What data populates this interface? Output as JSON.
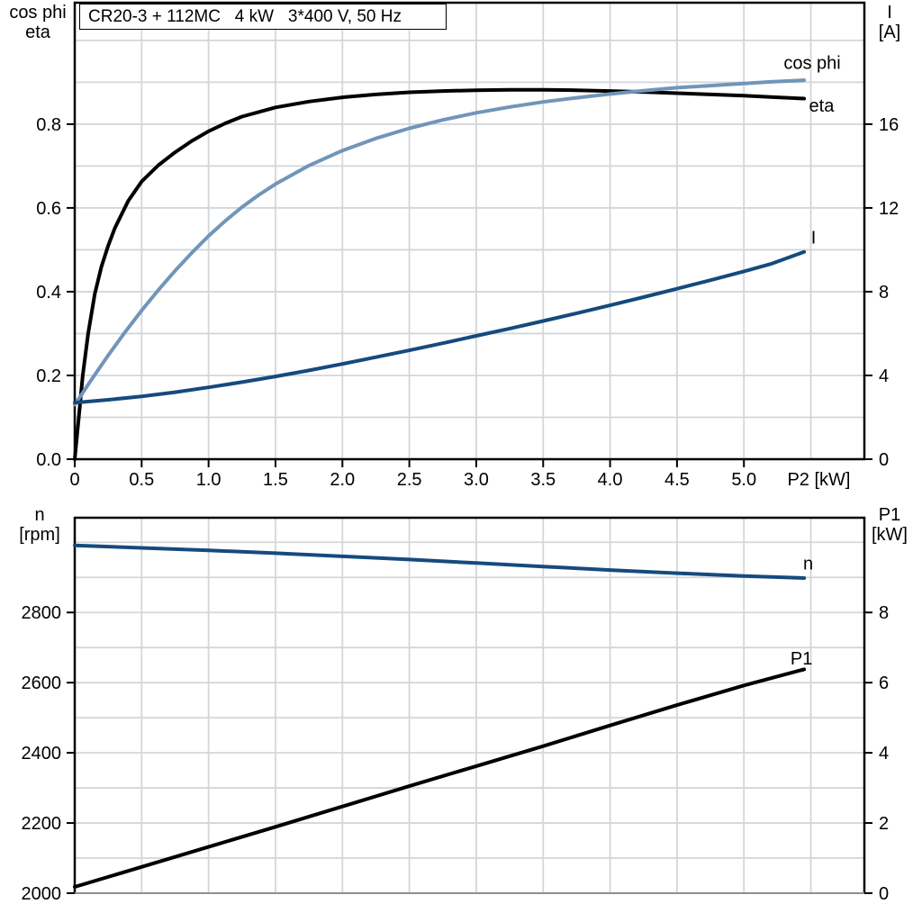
{
  "colors": {
    "frame": "#000000",
    "grid": "#d3d6da",
    "axis_gray": "#8f8f8f",
    "light_blue": "#7195b9",
    "dark_blue": "#154a7e",
    "black_curve": "#000000"
  },
  "chart_data": [
    {
      "type": "line",
      "name": "motor-efficiency",
      "title": "CR20-3 + 112MC   4 kW   3*400 V, 50 Hz",
      "x_axis": {
        "label": "P2 [kW]",
        "label_at": 5.56,
        "min": 0,
        "max": 5.9,
        "ticks": [
          0,
          0.5,
          1.0,
          1.5,
          2.0,
          2.5,
          3.0,
          3.5,
          4.0,
          4.5,
          5.0
        ],
        "tick_labels": [
          "0",
          "0.5",
          "1.0",
          "1.5",
          "2.0",
          "2.5",
          "3.0",
          "3.5",
          "4.0",
          "4.5",
          "5.0"
        ],
        "grid": {
          "from": 0.5,
          "to": 5.5,
          "step": 0.5
        }
      },
      "y_left": {
        "header": [
          "cos phi",
          "eta"
        ],
        "min": 0,
        "max": 1.09,
        "ticks": [
          0,
          0.2,
          0.4,
          0.6,
          0.8
        ],
        "tick_labels": [
          "0.0",
          "0.2",
          "0.4",
          "0.6",
          "0.8"
        ],
        "grid": {
          "from": 0.1,
          "to": 1.0,
          "step": 0.1
        }
      },
      "y_right": {
        "header": [
          "I",
          "[A]"
        ],
        "min": 0,
        "max": 21.8,
        "ticks": [
          0,
          4,
          8,
          12,
          16
        ],
        "tick_labels": [
          "0",
          "4",
          "8",
          "12",
          "16"
        ]
      },
      "series": [
        {
          "name": "eta",
          "axis": "left",
          "color": "#000000",
          "label": {
            "text": "eta",
            "x": 5.58,
            "y": 0.845
          },
          "points": [
            [
              0,
              0
            ],
            [
              0.03,
              0.1
            ],
            [
              0.06,
              0.2
            ],
            [
              0.1,
              0.3
            ],
            [
              0.15,
              0.395
            ],
            [
              0.2,
              0.46
            ],
            [
              0.25,
              0.51
            ],
            [
              0.3,
              0.552
            ],
            [
              0.4,
              0.617
            ],
            [
              0.5,
              0.663
            ],
            [
              0.625,
              0.702
            ],
            [
              0.75,
              0.733
            ],
            [
              0.875,
              0.76
            ],
            [
              1.0,
              0.783
            ],
            [
              1.125,
              0.802
            ],
            [
              1.25,
              0.818
            ],
            [
              1.5,
              0.84
            ],
            [
              1.75,
              0.854
            ],
            [
              2.0,
              0.864
            ],
            [
              2.25,
              0.871
            ],
            [
              2.5,
              0.876
            ],
            [
              2.75,
              0.879
            ],
            [
              3.0,
              0.881
            ],
            [
              3.25,
              0.882
            ],
            [
              3.5,
              0.882
            ],
            [
              3.75,
              0.881
            ],
            [
              4.0,
              0.879
            ],
            [
              4.25,
              0.877
            ],
            [
              4.5,
              0.874
            ],
            [
              4.75,
              0.871
            ],
            [
              5.0,
              0.868
            ],
            [
              5.2,
              0.865
            ],
            [
              5.45,
              0.861
            ]
          ]
        },
        {
          "name": "cos-phi",
          "axis": "left",
          "color": "#7195b9",
          "label": {
            "text": "cos phi",
            "x": 5.51,
            "y": 0.947
          },
          "points": [
            [
              0,
              0.13
            ],
            [
              0.125,
              0.19
            ],
            [
              0.25,
              0.248
            ],
            [
              0.375,
              0.303
            ],
            [
              0.5,
              0.355
            ],
            [
              0.625,
              0.404
            ],
            [
              0.75,
              0.45
            ],
            [
              0.875,
              0.493
            ],
            [
              1.0,
              0.533
            ],
            [
              1.125,
              0.569
            ],
            [
              1.25,
              0.602
            ],
            [
              1.375,
              0.631
            ],
            [
              1.5,
              0.657
            ],
            [
              1.75,
              0.701
            ],
            [
              2.0,
              0.737
            ],
            [
              2.25,
              0.766
            ],
            [
              2.5,
              0.79
            ],
            [
              2.75,
              0.81
            ],
            [
              3.0,
              0.827
            ],
            [
              3.25,
              0.841
            ],
            [
              3.5,
              0.853
            ],
            [
              3.75,
              0.863
            ],
            [
              4.0,
              0.872
            ],
            [
              4.25,
              0.88
            ],
            [
              4.5,
              0.887
            ],
            [
              4.75,
              0.892
            ],
            [
              5.0,
              0.897
            ],
            [
              5.2,
              0.901
            ],
            [
              5.45,
              0.905
            ]
          ]
        },
        {
          "name": "current",
          "axis": "right",
          "color": "#154a7e",
          "label": {
            "text": "I",
            "x": 5.52,
            "y": 10.6
          },
          "points": [
            [
              0,
              2.7
            ],
            [
              0.25,
              2.84
            ],
            [
              0.5,
              3.0
            ],
            [
              0.75,
              3.2
            ],
            [
              1.0,
              3.43
            ],
            [
              1.25,
              3.68
            ],
            [
              1.5,
              3.95
            ],
            [
              1.75,
              4.24
            ],
            [
              2.0,
              4.55
            ],
            [
              2.25,
              4.87
            ],
            [
              2.5,
              5.2
            ],
            [
              2.75,
              5.54
            ],
            [
              3.0,
              5.89
            ],
            [
              3.25,
              6.24
            ],
            [
              3.5,
              6.6
            ],
            [
              3.75,
              6.97
            ],
            [
              4.0,
              7.35
            ],
            [
              4.25,
              7.74
            ],
            [
              4.5,
              8.14
            ],
            [
              4.75,
              8.55
            ],
            [
              5.0,
              8.97
            ],
            [
              5.2,
              9.32
            ],
            [
              5.45,
              9.9
            ]
          ]
        }
      ]
    },
    {
      "type": "line",
      "name": "speed-power",
      "title": "",
      "x_axis": {
        "label": "",
        "label_at": null,
        "min": 0,
        "max": 5.9,
        "ticks": [],
        "tick_labels": [],
        "grid": {
          "from": 0.5,
          "to": 5.5,
          "step": 0.5
        }
      },
      "y_left": {
        "header": [
          "n",
          "[rpm]"
        ],
        "min": 2000,
        "max": 3070,
        "ticks": [
          2000,
          2200,
          2400,
          2600,
          2800
        ],
        "tick_labels": [
          "2000",
          "2200",
          "2400",
          "2600",
          "2800"
        ],
        "grid": {
          "from": 2100,
          "to": 3000,
          "step": 100
        }
      },
      "y_right": {
        "header": [
          "P1",
          "[kW]"
        ],
        "min": 0,
        "max": 10.7,
        "ticks": [
          0,
          2,
          4,
          6,
          8
        ],
        "tick_labels": [
          "0",
          "2",
          "4",
          "6",
          "8"
        ]
      },
      "series": [
        {
          "name": "speed",
          "axis": "left",
          "color": "#154a7e",
          "label": {
            "text": "n",
            "x": 5.48,
            "y": 2940
          },
          "points": [
            [
              0,
              2991
            ],
            [
              0.5,
              2984
            ],
            [
              1.0,
              2977
            ],
            [
              1.5,
              2969
            ],
            [
              2.0,
              2960
            ],
            [
              2.5,
              2951
            ],
            [
              3.0,
              2941
            ],
            [
              3.5,
              2931
            ],
            [
              4.0,
              2921
            ],
            [
              4.5,
              2912
            ],
            [
              5.0,
              2904
            ],
            [
              5.45,
              2898
            ]
          ]
        },
        {
          "name": "input-power",
          "axis": "right",
          "color": "#000000",
          "label": {
            "text": "P1",
            "x": 5.43,
            "y": 6.7
          },
          "points": [
            [
              0,
              0.18
            ],
            [
              0.5,
              0.75
            ],
            [
              1.0,
              1.32
            ],
            [
              1.5,
              1.89
            ],
            [
              2.0,
              2.47
            ],
            [
              2.5,
              3.05
            ],
            [
              3.0,
              3.62
            ],
            [
              3.5,
              4.19
            ],
            [
              4.0,
              4.78
            ],
            [
              4.5,
              5.36
            ],
            [
              5.0,
              5.92
            ],
            [
              5.45,
              6.38
            ]
          ]
        }
      ]
    }
  ]
}
